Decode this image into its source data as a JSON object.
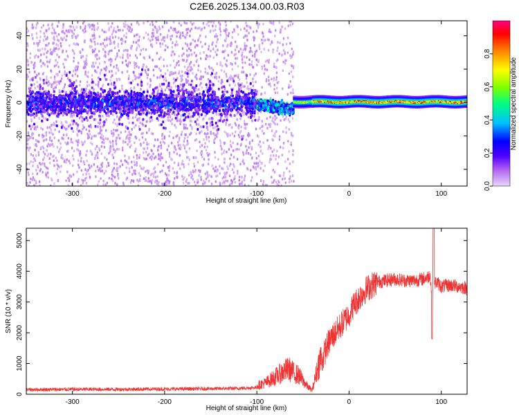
{
  "chart_data": [
    {
      "type": "heatmap",
      "title": "C2E6.2025.134.00.03.R03",
      "xlabel": "Height of straight line (km)",
      "ylabel": "Frequency (Hz)",
      "xlim": [
        -350,
        128
      ],
      "ylim": [
        -50,
        49
      ],
      "xticks": [
        -300,
        -200,
        -100,
        0,
        100
      ],
      "yticks": [
        -40,
        -20,
        0,
        20,
        40
      ],
      "colorbar": {
        "label": "Normalized spectral amplitude",
        "range": [
          0,
          1
        ],
        "ticks": [
          "0.0",
          "0.2",
          "0.4",
          "0.6",
          "0.8"
        ],
        "tick_values": [
          0.0,
          0.2,
          0.4,
          0.6,
          0.8
        ],
        "colors": [
          "#e8d8f8",
          "#b060f0",
          "#5000ff",
          "#0000ff",
          "#00c0ff",
          "#00ff80",
          "#80ff00",
          "#ffff00",
          "#ff8000",
          "#ff0000",
          "#ff0080"
        ]
      },
      "legend": "colorbar-right",
      "grid": false,
      "regions": [
        {
          "x_range": [
            -350,
            -100
          ],
          "core_halfwidth_hz": 10,
          "peak_amplitude": 0.3
        },
        {
          "x_range": [
            -100,
            -60
          ],
          "center_hz": -3,
          "peak_amplitude": 0.5
        },
        {
          "x_range": [
            -60,
            128
          ],
          "center_hz": 0.5,
          "halfwidth_hz": 3,
          "peak_amplitude": 0.95
        }
      ]
    },
    {
      "type": "line",
      "xlabel": "Height of straight line (km)",
      "ylabel": "SNR (10 * v/v)",
      "xlim": [
        -350,
        128
      ],
      "ylim": [
        0,
        5400
      ],
      "xticks": [
        -300,
        -200,
        -100,
        0,
        100
      ],
      "yticks": [
        0,
        1000,
        2000,
        3000,
        4000,
        5000
      ],
      "grid": false,
      "series": [
        {
          "color": "#ee3333",
          "x": [
            -350,
            -300,
            -250,
            -200,
            -150,
            -120,
            -100,
            -90,
            -80,
            -70,
            -65,
            -60,
            -55,
            -50,
            -45,
            -40,
            -35,
            -30,
            -25,
            -20,
            -15,
            -10,
            -5,
            0,
            5,
            10,
            15,
            20,
            25,
            30,
            40,
            50,
            60,
            70,
            80,
            85,
            88,
            90,
            92,
            95,
            100,
            110,
            120,
            128
          ],
          "values": [
            150,
            160,
            160,
            170,
            180,
            190,
            220,
            300,
            450,
            600,
            650,
            550,
            500,
            350,
            200,
            100,
            600,
            1000,
            1500,
            1800,
            2000,
            2200,
            2400,
            2600,
            2900,
            3100,
            3300,
            3450,
            3550,
            3650,
            3700,
            3750,
            3700,
            3700,
            3750,
            3800,
            3900,
            3000,
            3600,
            3650,
            3500,
            3550,
            3500,
            3450
          ]
        }
      ]
    }
  ]
}
